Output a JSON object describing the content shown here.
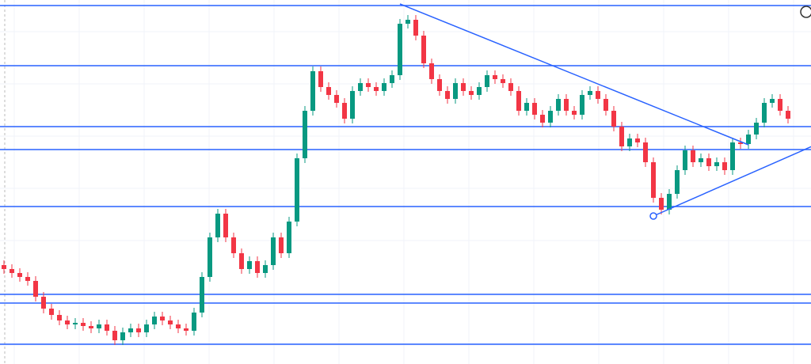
{
  "chart_data": {
    "type": "candlestick",
    "up_color": "#089981",
    "down_color": "#f23645",
    "line_color": "#2962ff",
    "grid": true,
    "xlim": [
      -0.5,
      101.9
    ],
    "ylim": [
      0,
      460
    ],
    "open": [
      125,
      120,
      115,
      110,
      105,
      85,
      70,
      62,
      55,
      50,
      52,
      48,
      45,
      50,
      42,
      30,
      40,
      45,
      40,
      50,
      60,
      55,
      50,
      45,
      42,
      65,
      110,
      160,
      190,
      160,
      140,
      120,
      130,
      115,
      125,
      160,
      140,
      180,
      260,
      320,
      370,
      350,
      340,
      330,
      310,
      345,
      355,
      350,
      345,
      355,
      365,
      430,
      435,
      415,
      380,
      360,
      345,
      335,
      355,
      345,
      340,
      350,
      365,
      360,
      355,
      345,
      320,
      330,
      315,
      305,
      320,
      335,
      320,
      315,
      340,
      345,
      335,
      320,
      300,
      275,
      285,
      280,
      255,
      210,
      195,
      215,
      245,
      270,
      255,
      260,
      250,
      255,
      245,
      280,
      278,
      290,
      305,
      330,
      335,
      320
    ],
    "high": [
      131,
      126,
      121,
      116,
      111,
      91,
      76,
      68,
      61,
      58,
      58,
      54,
      56,
      56,
      48,
      46,
      51,
      51,
      56,
      66,
      66,
      61,
      56,
      51,
      71,
      116,
      166,
      196,
      196,
      166,
      146,
      136,
      136,
      131,
      166,
      166,
      186,
      266,
      326,
      376,
      376,
      356,
      346,
      336,
      351,
      361,
      361,
      356,
      361,
      371,
      436,
      441,
      441,
      421,
      386,
      366,
      351,
      361,
      361,
      351,
      356,
      371,
      371,
      366,
      361,
      351,
      336,
      336,
      321,
      326,
      341,
      341,
      326,
      346,
      351,
      351,
      341,
      326,
      306,
      291,
      291,
      286,
      261,
      216,
      221,
      251,
      276,
      276,
      266,
      266,
      261,
      261,
      286,
      286,
      296,
      311,
      336,
      341,
      341,
      326
    ],
    "low": [
      114,
      109,
      104,
      99,
      79,
      64,
      56,
      49,
      44,
      44,
      42,
      39,
      39,
      36,
      24,
      24,
      34,
      34,
      34,
      44,
      49,
      44,
      39,
      36,
      36,
      59,
      104,
      154,
      154,
      134,
      114,
      114,
      109,
      109,
      119,
      134,
      134,
      174,
      254,
      314,
      344,
      334,
      324,
      304,
      304,
      339,
      344,
      339,
      339,
      349,
      359,
      424,
      409,
      374,
      354,
      339,
      329,
      329,
      339,
      334,
      334,
      344,
      354,
      349,
      339,
      314,
      314,
      309,
      299,
      299,
      314,
      314,
      309,
      309,
      334,
      329,
      314,
      294,
      269,
      269,
      274,
      249,
      204,
      189,
      189,
      209,
      239,
      249,
      249,
      244,
      244,
      239,
      239,
      272,
      272,
      284,
      299,
      324,
      314,
      304
    ],
    "close": [
      120,
      115,
      110,
      105,
      85,
      70,
      62,
      55,
      50,
      52,
      48,
      45,
      50,
      42,
      30,
      40,
      45,
      40,
      50,
      60,
      55,
      50,
      45,
      42,
      65,
      110,
      160,
      190,
      160,
      140,
      120,
      130,
      115,
      125,
      160,
      140,
      180,
      260,
      320,
      370,
      350,
      340,
      330,
      310,
      345,
      355,
      350,
      345,
      355,
      365,
      430,
      435,
      415,
      380,
      360,
      345,
      335,
      355,
      345,
      340,
      350,
      365,
      360,
      355,
      345,
      320,
      330,
      315,
      305,
      320,
      335,
      320,
      315,
      340,
      345,
      335,
      320,
      300,
      275,
      285,
      280,
      255,
      210,
      195,
      215,
      245,
      270,
      255,
      260,
      250,
      255,
      245,
      280,
      278,
      290,
      305,
      330,
      335,
      320,
      310
    ],
    "levels": [
      453,
      377,
      300,
      271,
      199,
      88,
      77,
      25
    ],
    "trend_lines": [
      {
        "x": [
          50,
          94
        ],
        "y": [
          455,
          277
        ]
      },
      {
        "x": [
          82,
          102
        ],
        "y": [
          187,
          275
        ]
      }
    ]
  }
}
